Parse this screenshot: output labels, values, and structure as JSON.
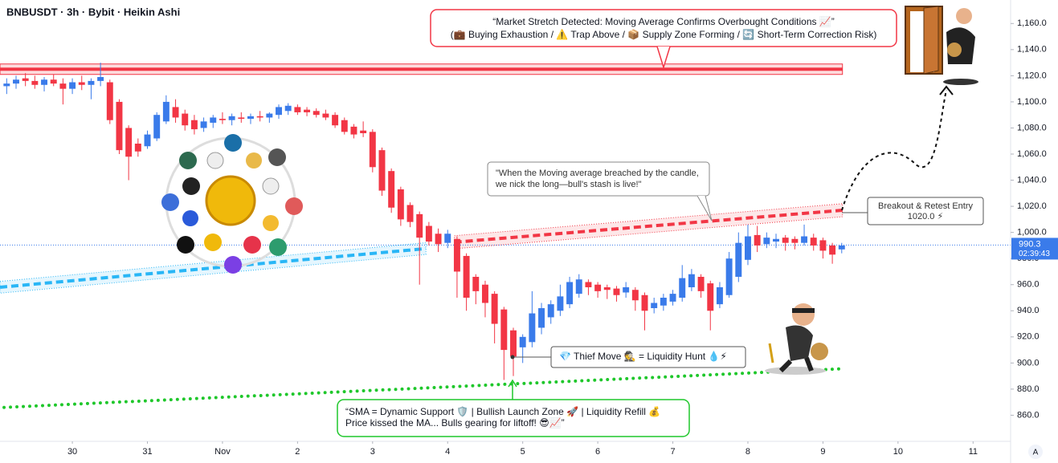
{
  "chart_data": {
    "type": "candlestick",
    "title": "BNBUSDT · 3h · Bybit · Heikin Ashi",
    "up_color": "#3a7bea",
    "down_color": "#f23645",
    "grid": false,
    "xlim": [
      -0.964,
      12.5
    ],
    "ylim": [
      840,
      1178
    ],
    "xticks": [
      {
        "value": 0,
        "label": "30"
      },
      {
        "value": 1,
        "label": "31"
      },
      {
        "value": 2,
        "label": "Nov"
      },
      {
        "value": 3,
        "label": "2"
      },
      {
        "value": 4,
        "label": "3"
      },
      {
        "value": 5,
        "label": "4"
      },
      {
        "value": 6,
        "label": "5"
      },
      {
        "value": 7,
        "label": "6"
      },
      {
        "value": 8,
        "label": "7"
      },
      {
        "value": 9,
        "label": "8"
      },
      {
        "value": 10,
        "label": "9"
      },
      {
        "value": 11,
        "label": "10"
      },
      {
        "value": 12,
        "label": "11"
      }
    ],
    "yticks": [
      {
        "value": 860,
        "label": "860.0"
      },
      {
        "value": 880,
        "label": "880.0"
      },
      {
        "value": 900,
        "label": "900.0"
      },
      {
        "value": 920,
        "label": "920.0"
      },
      {
        "value": 940,
        "label": "940.0"
      },
      {
        "value": 960,
        "label": "960.0"
      },
      {
        "value": 980,
        "label": "980.0"
      },
      {
        "value": 1000,
        "label": "1,000.0"
      },
      {
        "value": 1020,
        "label": "1,020.0"
      },
      {
        "value": 1040,
        "label": "1,040.0"
      },
      {
        "value": 1060,
        "label": "1,060.0"
      },
      {
        "value": 1080,
        "label": "1,080.0"
      },
      {
        "value": 1100,
        "label": "1,100.0"
      },
      {
        "value": 1120,
        "label": "1,120.0"
      },
      {
        "value": 1140,
        "label": "1,140.0"
      },
      {
        "value": 1160,
        "label": "1,160.0"
      }
    ],
    "x": [
      -0.875,
      -0.75,
      -0.625,
      -0.5,
      -0.375,
      -0.25,
      -0.125,
      0,
      0.125,
      0.25,
      0.375,
      0.5,
      0.625,
      0.75,
      0.875,
      1,
      1.125,
      1.25,
      1.375,
      1.5,
      1.625,
      1.75,
      1.875,
      2,
      2.125,
      2.25,
      2.375,
      2.5,
      2.625,
      2.75,
      2.875,
      3,
      3.125,
      3.25,
      3.375,
      3.5,
      3.625,
      3.75,
      3.875,
      4,
      4.125,
      4.25,
      4.375,
      4.5,
      4.625,
      4.75,
      4.875,
      5,
      5.125,
      5.25,
      5.375,
      5.5,
      5.625,
      5.75,
      5.875,
      6,
      6.125,
      6.25,
      6.375,
      6.5,
      6.625,
      6.75,
      6.875,
      7,
      7.125,
      7.25,
      7.375,
      7.5,
      7.625,
      7.75,
      7.875,
      8,
      8.125,
      8.25,
      8.375,
      8.5,
      8.625,
      8.75,
      8.875,
      9,
      9.125,
      9.25,
      9.375,
      9.5,
      9.625,
      9.75,
      9.875,
      10,
      10.125,
      10.25
    ],
    "open": [
      1112,
      1114,
      1118,
      1116,
      1113,
      1117,
      1114,
      1110,
      1115,
      1113,
      1116,
      1115,
      1100,
      1080,
      1068,
      1066,
      1072,
      1085,
      1096,
      1091,
      1086,
      1080,
      1084,
      1087,
      1086,
      1088,
      1087,
      1089,
      1088,
      1090,
      1093,
      1096,
      1094,
      1093,
      1091,
      1090,
      1086,
      1081,
      1078,
      1077,
      1063,
      1047,
      1033,
      1021,
      1014,
      1005,
      999,
      992,
      995,
      982,
      966,
      960,
      953,
      941,
      925,
      912,
      916,
      927,
      935,
      940,
      945,
      953,
      962,
      960,
      958,
      957,
      954,
      956,
      952,
      942,
      944,
      947,
      950,
      958,
      966,
      961,
      945,
      952,
      966,
      979,
      998,
      991,
      993,
      996,
      995,
      992,
      996,
      994,
      990,
      987
    ],
    "high": [
      1118,
      1120,
      1122,
      1120,
      1119,
      1121,
      1118,
      1118,
      1120,
      1118,
      1130,
      1117,
      1102,
      1082,
      1072,
      1078,
      1092,
      1105,
      1102,
      1094,
      1090,
      1088,
      1090,
      1092,
      1091,
      1092,
      1091,
      1093,
      1092,
      1098,
      1099,
      1098,
      1096,
      1095,
      1094,
      1092,
      1088,
      1083,
      1085,
      1079,
      1065,
      1049,
      1035,
      1023,
      1016,
      1008,
      1003,
      1002,
      997,
      984,
      968,
      963,
      955,
      943,
      927,
      922,
      955,
      946,
      948,
      960,
      966,
      968,
      964,
      962,
      960,
      959,
      962,
      958,
      954,
      950,
      953,
      956,
      975,
      972,
      968,
      963,
      962,
      985,
      1000,
      1006,
      1005,
      1000,
      999,
      998,
      997,
      1006,
      999,
      996,
      992,
      992
    ],
    "low": [
      1106,
      1110,
      1112,
      1110,
      1108,
      1112,
      1098,
      1106,
      1109,
      1102,
      1112,
      1083,
      1060,
      1040,
      1058,
      1064,
      1070,
      1083,
      1084,
      1078,
      1075,
      1077,
      1080,
      1083,
      1082,
      1084,
      1083,
      1085,
      1084,
      1087,
      1090,
      1090,
      1089,
      1088,
      1086,
      1080,
      1075,
      1072,
      1073,
      1046,
      1028,
      1015,
      1005,
      1004,
      960,
      990,
      985,
      988,
      950,
      940,
      945,
      935,
      915,
      887,
      890,
      900,
      912,
      922,
      930,
      936,
      942,
      950,
      952,
      950,
      949,
      947,
      950,
      940,
      925,
      938,
      940,
      944,
      947,
      955,
      950,
      925,
      942,
      950,
      962,
      975,
      985,
      988,
      988,
      986,
      987,
      990,
      986,
      980,
      976,
      984
    ],
    "close": [
      1114,
      1117,
      1116,
      1113,
      1117,
      1114,
      1110,
      1115,
      1113,
      1116,
      1119,
      1086,
      1063,
      1058,
      1062,
      1075,
      1090,
      1100,
      1088,
      1082,
      1079,
      1085,
      1088,
      1086,
      1089,
      1087,
      1089,
      1088,
      1091,
      1096,
      1097,
      1092,
      1092,
      1090,
      1088,
      1082,
      1077,
      1075,
      1076,
      1050,
      1032,
      1019,
      1010,
      1008,
      996,
      993,
      991,
      999,
      970,
      950,
      955,
      946,
      930,
      910,
      905,
      920,
      938,
      942,
      945,
      951,
      962,
      964,
      958,
      955,
      956,
      952,
      958,
      948,
      940,
      946,
      950,
      953,
      965,
      968,
      955,
      940,
      958,
      980,
      992,
      997,
      990,
      996,
      995,
      992,
      992,
      997,
      990,
      986,
      983,
      990
    ],
    "last_price": 990.3,
    "countdown": "02:39:43",
    "resistance_zone": {
      "low": 1121,
      "high": 1129,
      "level": 1125,
      "color": "#f23645",
      "x": [
        -0.964,
        10.26
      ]
    },
    "trend_lines": [
      {
        "color": "#29b6f6",
        "style": "dashed",
        "band": 4.5,
        "x": [
          -0.964,
          4.71
        ],
        "y": [
          958,
          987.6
        ]
      },
      {
        "color": "#f23645",
        "style": "dashed",
        "band": 5,
        "x": [
          5.09,
          10.26
        ],
        "y": [
          992.5,
          1017
        ]
      },
      {
        "color": "#1fc72b",
        "style": "dotted",
        "x": [
          -0.91,
          10.26
        ],
        "y": [
          866,
          895.6
        ]
      }
    ],
    "annotations": [
      {
        "lines": [
          "“Market Stretch Detected: Moving Average Confirms Overbought Conditions 📈”",
          "(💼 Buying Exhaustion / ⚠️ Trap Above / 📦 Supply Zone Forming / 🔄 Short-Term Correction Risk)"
        ]
      },
      {
        "lines": [
          "\"When the Moving average breached by the candle,",
          " we nick the long—bull's stash is live!\""
        ]
      },
      {
        "lines": [
          "Breakout & Retest Entry",
          "1020.0 ⚡"
        ]
      },
      {
        "lines": [
          "💎 Thief Move 🕵️ = Liquidity Hunt 💧⚡"
        ]
      },
      {
        "lines": [
          "“SMA = Dynamic Support 🛡️ | Bullish Launch Zone 🚀 | Liquidity Refill 💰",
          "Price kissed the MA... Bulls gearing for liftoff! 😎📈”"
        ]
      }
    ]
  }
}
